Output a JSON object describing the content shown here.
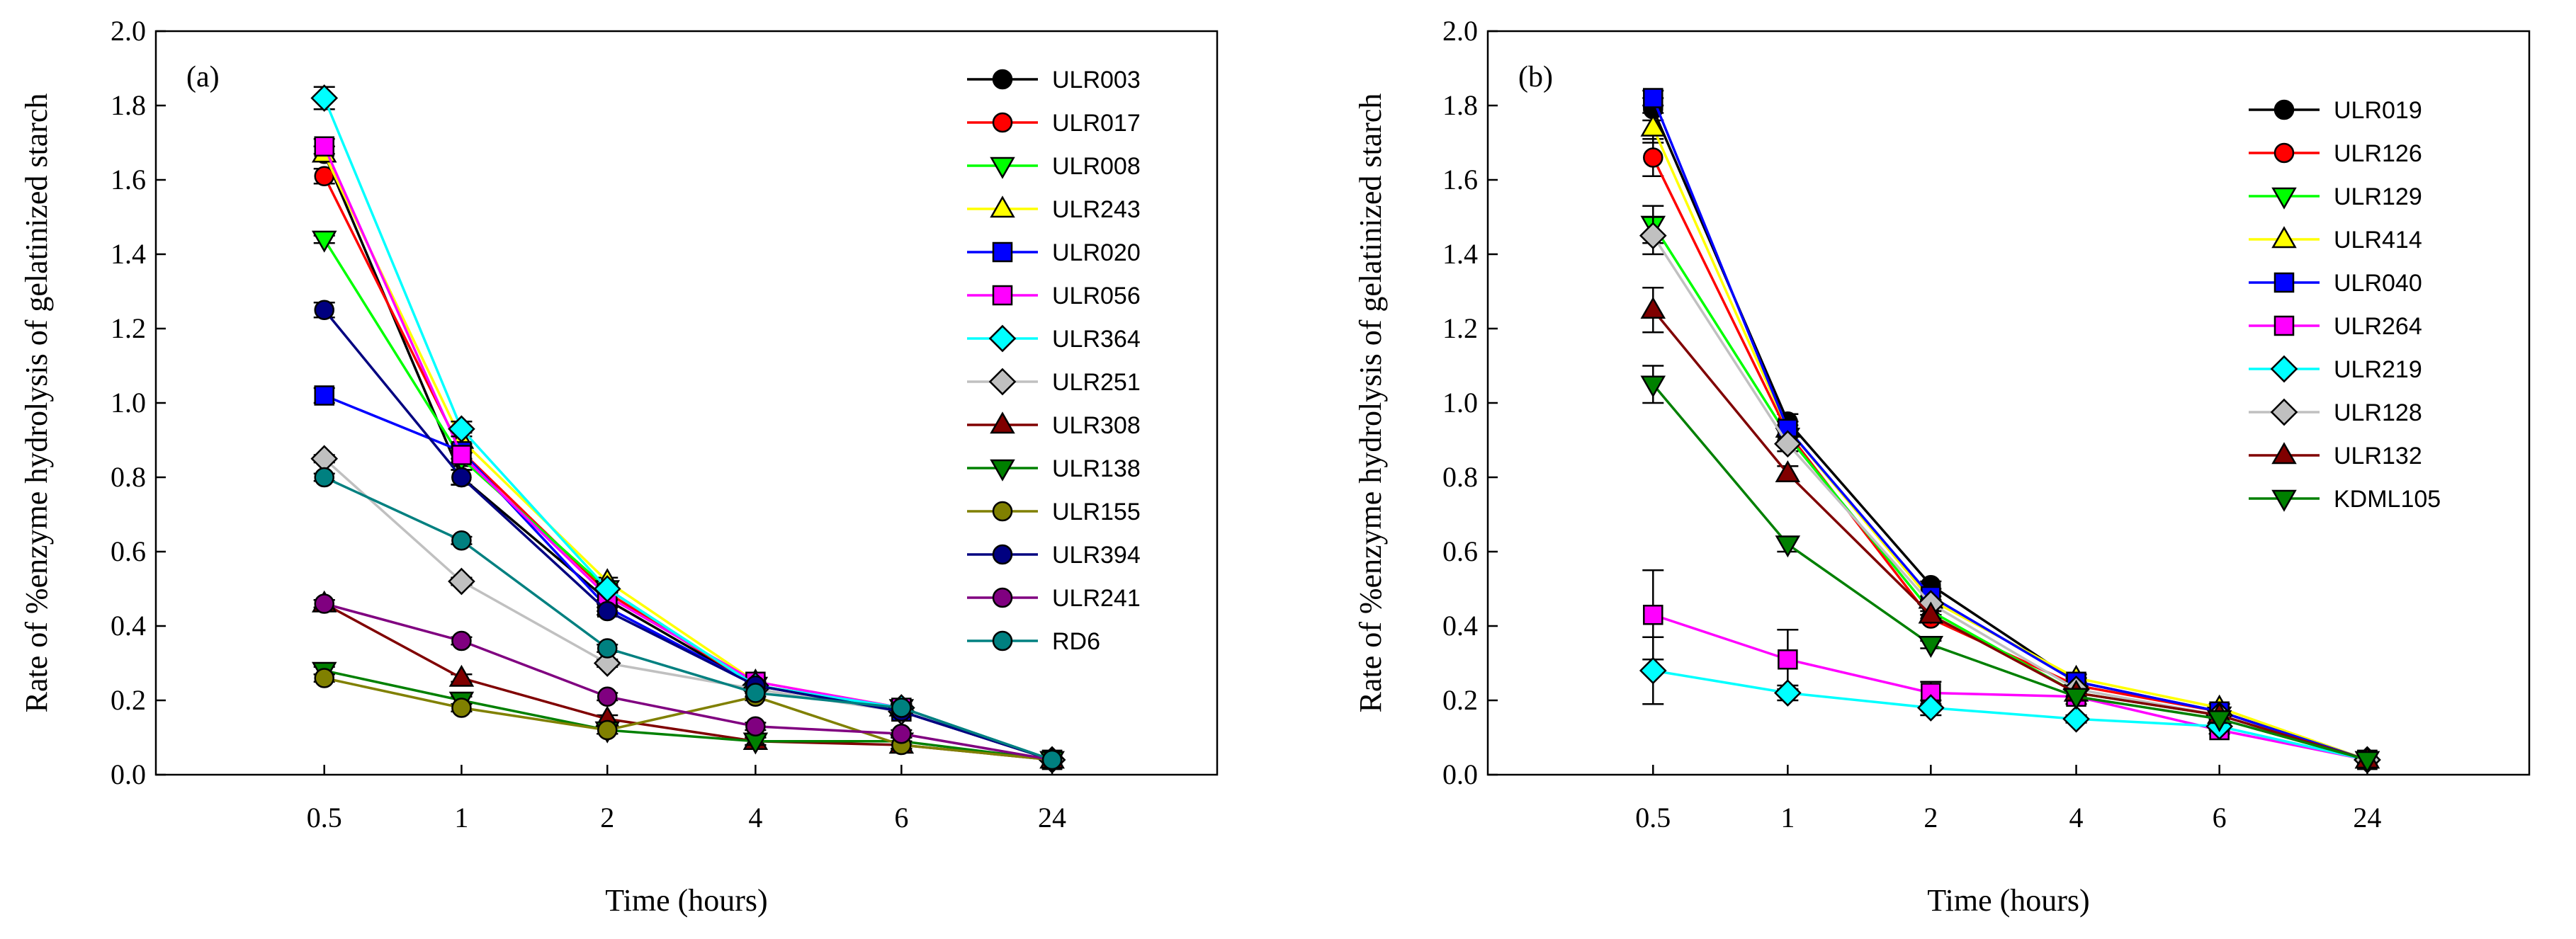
{
  "chart_data": [
    {
      "type": "line",
      "panel_label": "(a)",
      "xlabel": "Time (hours)",
      "ylabel": "Rate of %enzyme hydrolysis of gelatinized starch",
      "categories": [
        "0.5",
        "1",
        "2",
        "4",
        "6",
        "24"
      ],
      "yticks": [
        "0.0",
        "0.2",
        "0.4",
        "0.6",
        "0.8",
        "1.0",
        "1.2",
        "1.4",
        "1.6",
        "1.8",
        "2.0"
      ],
      "ylim": [
        0,
        2.0
      ],
      "grid": false,
      "legend_position": "right",
      "series": [
        {
          "name": "ULR003",
          "color": "#000000",
          "marker": "circle",
          "values": [
            1.67,
            0.8,
            0.47,
            0.24,
            0.17,
            0.04
          ],
          "err": [
            0.02,
            0.02,
            0.01,
            0.01,
            0.01,
            0.005
          ]
        },
        {
          "name": "ULR017",
          "color": "#ff0000",
          "marker": "circle",
          "values": [
            1.61,
            0.87,
            0.49,
            0.24,
            0.17,
            0.04
          ],
          "err": [
            0.02,
            0.02,
            0.01,
            0.01,
            0.01,
            0.005
          ]
        },
        {
          "name": "ULR008",
          "color": "#00ff00",
          "marker": "triangle-down",
          "values": [
            1.44,
            0.85,
            0.5,
            0.24,
            0.18,
            0.04
          ],
          "err": [
            0.01,
            0.02,
            0.01,
            0.01,
            0.01,
            0.005
          ]
        },
        {
          "name": "ULR243",
          "color": "#ffff00",
          "marker": "triangle-up",
          "values": [
            1.67,
            0.9,
            0.52,
            0.25,
            0.18,
            0.04
          ],
          "err": [
            0.02,
            0.02,
            0.01,
            0.01,
            0.01,
            0.005
          ]
        },
        {
          "name": "ULR020",
          "color": "#0000ff",
          "marker": "square",
          "values": [
            1.02,
            0.87,
            0.45,
            0.24,
            0.17,
            0.04
          ],
          "err": [
            0.02,
            0.02,
            0.01,
            0.01,
            0.01,
            0.005
          ]
        },
        {
          "name": "ULR056",
          "color": "#ff00ff",
          "marker": "square",
          "values": [
            1.69,
            0.86,
            0.48,
            0.25,
            0.18,
            0.04
          ],
          "err": [
            0.02,
            0.02,
            0.01,
            0.01,
            0.01,
            0.005
          ]
        },
        {
          "name": "ULR364",
          "color": "#00ffff",
          "marker": "diamond",
          "values": [
            1.82,
            0.93,
            0.5,
            0.24,
            0.18,
            0.04
          ],
          "err": [
            0.03,
            0.02,
            0.01,
            0.01,
            0.01,
            0.005
          ]
        },
        {
          "name": "ULR251",
          "color": "#c0c0c0",
          "marker": "diamond",
          "values": [
            0.85,
            0.52,
            0.3,
            0.23,
            0.17,
            0.04
          ],
          "err": [
            0.01,
            0.01,
            0.01,
            0.01,
            0.01,
            0.005
          ]
        },
        {
          "name": "ULR308",
          "color": "#800000",
          "marker": "triangle-up",
          "values": [
            0.46,
            0.26,
            0.15,
            0.09,
            0.08,
            0.04
          ],
          "err": [
            0.01,
            0.01,
            0.01,
            0.01,
            0.01,
            0.005
          ]
        },
        {
          "name": "ULR138",
          "color": "#008000",
          "marker": "triangle-down",
          "values": [
            0.28,
            0.2,
            0.12,
            0.09,
            0.09,
            0.04
          ],
          "err": [
            0.01,
            0.01,
            0.01,
            0.01,
            0.01,
            0.005
          ]
        },
        {
          "name": "ULR155",
          "color": "#808000",
          "marker": "circle",
          "values": [
            0.26,
            0.18,
            0.12,
            0.21,
            0.08,
            0.04
          ],
          "err": [
            0.01,
            0.01,
            0.01,
            0.01,
            0.01,
            0.005
          ]
        },
        {
          "name": "ULR394",
          "color": "#000080",
          "marker": "circle",
          "values": [
            1.25,
            0.8,
            0.44,
            0.24,
            0.17,
            0.04
          ],
          "err": [
            0.02,
            0.02,
            0.01,
            0.01,
            0.01,
            0.005
          ]
        },
        {
          "name": "ULR241",
          "color": "#800080",
          "marker": "circle",
          "values": [
            0.46,
            0.36,
            0.21,
            0.13,
            0.11,
            0.04
          ],
          "err": [
            0.01,
            0.01,
            0.01,
            0.01,
            0.01,
            0.005
          ]
        },
        {
          "name": "RD6",
          "color": "#008080",
          "marker": "circle",
          "values": [
            0.8,
            0.63,
            0.34,
            0.22,
            0.18,
            0.04
          ],
          "err": [
            0.01,
            0.01,
            0.01,
            0.01,
            0.01,
            0.005
          ]
        }
      ]
    },
    {
      "type": "line",
      "panel_label": "(b)",
      "xlabel": "Time (hours)",
      "ylabel": "Rate of %enzyme hydrolysis of gelatinized starch",
      "categories": [
        "0.5",
        "1",
        "2",
        "4",
        "6",
        "24"
      ],
      "yticks": [
        "0.0",
        "0.2",
        "0.4",
        "0.6",
        "0.8",
        "1.0",
        "1.2",
        "1.4",
        "1.6",
        "1.8",
        "2.0"
      ],
      "ylim": [
        0,
        2.0
      ],
      "grid": false,
      "legend_position": "right",
      "series": [
        {
          "name": "ULR019",
          "color": "#000000",
          "marker": "circle",
          "values": [
            1.79,
            0.95,
            0.51,
            0.25,
            0.17,
            0.04
          ],
          "err": [
            0.03,
            0.02,
            0.01,
            0.01,
            0.01,
            0.005
          ]
        },
        {
          "name": "ULR126",
          "color": "#ff0000",
          "marker": "circle",
          "values": [
            1.66,
            0.92,
            0.42,
            0.24,
            0.17,
            0.04
          ],
          "err": [
            0.05,
            0.02,
            0.01,
            0.01,
            0.01,
            0.005
          ]
        },
        {
          "name": "ULR129",
          "color": "#00ff00",
          "marker": "triangle-down",
          "values": [
            1.48,
            0.91,
            0.44,
            0.22,
            0.16,
            0.04
          ],
          "err": [
            0.05,
            0.02,
            0.01,
            0.01,
            0.01,
            0.005
          ]
        },
        {
          "name": "ULR414",
          "color": "#ffff00",
          "marker": "triangle-up",
          "values": [
            1.74,
            0.93,
            0.47,
            0.26,
            0.18,
            0.04
          ],
          "err": [
            0.04,
            0.02,
            0.01,
            0.01,
            0.01,
            0.005
          ]
        },
        {
          "name": "ULR040",
          "color": "#0000ff",
          "marker": "square",
          "values": [
            1.82,
            0.93,
            0.48,
            0.25,
            0.17,
            0.04
          ],
          "err": [
            0.02,
            0.02,
            0.01,
            0.01,
            0.01,
            0.005
          ]
        },
        {
          "name": "ULR264",
          "color": "#ff00ff",
          "marker": "square",
          "values": [
            0.43,
            0.31,
            0.22,
            0.21,
            0.12,
            0.04
          ],
          "err": [
            0.12,
            0.08,
            0.03,
            0.02,
            0.01,
            0.005
          ]
        },
        {
          "name": "ULR219",
          "color": "#00ffff",
          "marker": "diamond",
          "values": [
            0.28,
            0.22,
            0.18,
            0.15,
            0.13,
            0.04
          ],
          "err": [
            0.09,
            0.02,
            0.02,
            0.01,
            0.01,
            0.005
          ]
        },
        {
          "name": "ULR128",
          "color": "#c0c0c0",
          "marker": "diamond",
          "values": [
            1.45,
            0.89,
            0.46,
            0.23,
            0.16,
            0.04
          ],
          "err": [
            0.05,
            0.02,
            0.01,
            0.01,
            0.01,
            0.005
          ]
        },
        {
          "name": "ULR132",
          "color": "#800000",
          "marker": "triangle-up",
          "values": [
            1.25,
            0.81,
            0.43,
            0.22,
            0.16,
            0.04
          ],
          "err": [
            0.06,
            0.02,
            0.01,
            0.01,
            0.01,
            0.005
          ]
        },
        {
          "name": "KDML105",
          "color": "#008000",
          "marker": "triangle-down",
          "values": [
            1.05,
            0.62,
            0.35,
            0.21,
            0.15,
            0.04
          ],
          "err": [
            0.05,
            0.02,
            0.01,
            0.01,
            0.01,
            0.005
          ]
        }
      ]
    }
  ]
}
